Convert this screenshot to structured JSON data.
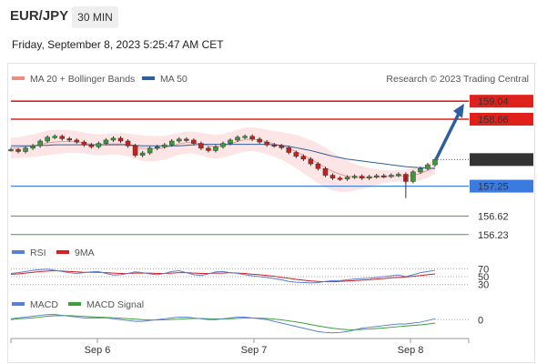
{
  "header": {
    "pair": "EUR/JPY",
    "timeframe": "30 MIN",
    "datetime": "Friday, September 8, 2023 5:25:47 AM CET"
  },
  "chart_data": {
    "type": "line",
    "price_legend": [
      {
        "label": "MA 20 + Bollinger Bands",
        "color": "#f28b82"
      },
      {
        "label": "MA 50",
        "color": "#2c5f9e"
      }
    ],
    "credit": "Research © 2023 Trading Central",
    "x_ticks": [
      "Sep 6",
      "Sep 7",
      "Sep 8"
    ],
    "price_ylim": [
      155.9,
      159.35
    ],
    "levels": [
      {
        "label": "159.04",
        "value": 159.04,
        "color": "#e0201b",
        "style": "resistance"
      },
      {
        "label": "158.66",
        "value": 158.66,
        "color": "#e0201b",
        "style": "resistance"
      },
      {
        "label": "157.81",
        "value": 157.81,
        "color": "#333333",
        "style": "current"
      },
      {
        "label": "157.25",
        "value": 157.25,
        "color": "#3b7be0",
        "style": "pivot"
      },
      {
        "label": "156.62",
        "value": 156.62,
        "color": "#3aa03a",
        "style": "support"
      },
      {
        "label": "156.23",
        "value": 156.23,
        "color": "#3aa03a",
        "style": "support"
      }
    ],
    "price_close": [
      158.02,
      157.98,
      158.05,
      158.1,
      158.2,
      158.28,
      158.3,
      158.25,
      158.22,
      158.18,
      158.12,
      158.08,
      158.15,
      158.22,
      158.26,
      158.2,
      158.1,
      157.9,
      157.95,
      158.05,
      158.08,
      158.12,
      158.2,
      158.24,
      158.22,
      158.15,
      158.05,
      158.0,
      158.08,
      158.15,
      158.22,
      158.28,
      158.3,
      158.24,
      158.18,
      158.12,
      158.1,
      158.06,
      157.96,
      157.88,
      157.82,
      157.72,
      157.62,
      157.48,
      157.42,
      157.4,
      157.44,
      157.46,
      157.42,
      157.45,
      157.47,
      157.46,
      157.48,
      157.5,
      157.35,
      157.55,
      157.62,
      157.7,
      157.81
    ],
    "ma20": [
      158.05,
      158.06,
      158.08,
      158.1,
      158.13,
      158.16,
      158.18,
      158.19,
      158.19,
      158.18,
      158.16,
      158.13,
      158.12,
      158.13,
      158.14,
      158.14,
      158.12,
      158.08,
      158.05,
      158.04,
      158.04,
      158.06,
      158.1,
      158.14,
      158.17,
      158.17,
      158.14,
      158.1,
      158.08,
      158.1,
      158.14,
      158.19,
      158.23,
      158.24,
      158.22,
      158.18,
      158.14,
      158.1,
      158.04,
      157.98,
      157.9,
      157.82,
      157.73,
      157.64,
      157.56,
      157.5,
      157.46,
      157.44,
      157.43,
      157.43,
      157.44,
      157.45,
      157.46,
      157.47,
      157.46,
      157.48,
      157.52,
      157.58,
      157.66
    ],
    "ma50": [
      158.1,
      158.1,
      158.1,
      158.1,
      158.11,
      158.11,
      158.12,
      158.12,
      158.12,
      158.12,
      158.12,
      158.12,
      158.12,
      158.12,
      158.12,
      158.12,
      158.12,
      158.11,
      158.1,
      158.1,
      158.1,
      158.1,
      158.1,
      158.1,
      158.11,
      158.12,
      158.13,
      158.13,
      158.13,
      158.13,
      158.13,
      158.13,
      158.13,
      158.13,
      158.13,
      158.13,
      158.12,
      158.11,
      158.09,
      158.06,
      158.03,
      158.0,
      157.96,
      157.92,
      157.88,
      157.85,
      157.82,
      157.8,
      157.78,
      157.76,
      157.74,
      157.72,
      157.7,
      157.68,
      157.66,
      157.65,
      157.64,
      157.63,
      157.62
    ],
    "bb_width": [
      0.22,
      0.22,
      0.23,
      0.24,
      0.25,
      0.26,
      0.26,
      0.25,
      0.24,
      0.23,
      0.22,
      0.22,
      0.22,
      0.22,
      0.22,
      0.23,
      0.24,
      0.26,
      0.27,
      0.27,
      0.26,
      0.25,
      0.24,
      0.23,
      0.23,
      0.23,
      0.24,
      0.25,
      0.25,
      0.25,
      0.25,
      0.25,
      0.25,
      0.25,
      0.25,
      0.26,
      0.27,
      0.29,
      0.32,
      0.35,
      0.38,
      0.4,
      0.42,
      0.42,
      0.4,
      0.37,
      0.33,
      0.28,
      0.24,
      0.2,
      0.16,
      0.14,
      0.12,
      0.12,
      0.14,
      0.15,
      0.15,
      0.15,
      0.16
    ],
    "rsi_legend": [
      {
        "label": "RSI",
        "color": "#5a7fd6"
      },
      {
        "label": "9MA",
        "color": "#d62020"
      }
    ],
    "rsi_levels": [
      {
        "label": "70",
        "value": 70
      },
      {
        "label": "50",
        "value": 50
      },
      {
        "label": "30",
        "value": 30
      }
    ],
    "rsi_ylim": [
      20,
      80
    ],
    "rsi": [
      58,
      60,
      63,
      66,
      68,
      69,
      66,
      63,
      60,
      58,
      60,
      62,
      63,
      58,
      54,
      55,
      58,
      62,
      60,
      57,
      55,
      58,
      63,
      65,
      60,
      55,
      53,
      57,
      62,
      63,
      60,
      58,
      55,
      52,
      50,
      48,
      45,
      42,
      38,
      36,
      35,
      34,
      35,
      38,
      40,
      40,
      42,
      44,
      45,
      46,
      48,
      50,
      52,
      54,
      50,
      55,
      60,
      63,
      66
    ],
    "rsi_ma": [
      56,
      57,
      59,
      61,
      63,
      64,
      65,
      64,
      63,
      62,
      61,
      61,
      61,
      60,
      59,
      58,
      58,
      59,
      59,
      59,
      58,
      58,
      59,
      60,
      60,
      59,
      58,
      58,
      59,
      59,
      60,
      59,
      58,
      56,
      55,
      53,
      51,
      48,
      46,
      43,
      41,
      39,
      38,
      37,
      37,
      38,
      39,
      40,
      41,
      42,
      44,
      45,
      47,
      48,
      49,
      51,
      53,
      55,
      57
    ],
    "macd_legend": [
      {
        "label": "MACD",
        "color": "#5a7fd6"
      },
      {
        "label": "MACD Signal",
        "color": "#3aa03a"
      }
    ],
    "macd_levels": [
      {
        "label": "0",
        "value": 0
      }
    ],
    "macd_ylim": [
      -0.2,
      0.12
    ],
    "macd": [
      0.01,
      0.02,
      0.03,
      0.04,
      0.05,
      0.06,
      0.06,
      0.05,
      0.04,
      0.03,
      0.02,
      0.02,
      0.02,
      0.02,
      0.01,
      0.0,
      -0.01,
      -0.02,
      -0.02,
      -0.01,
      0.0,
      0.01,
      0.02,
      0.03,
      0.03,
      0.02,
      0.01,
      0.0,
      0.0,
      0.01,
      0.02,
      0.03,
      0.03,
      0.02,
      0.01,
      0.0,
      -0.02,
      -0.04,
      -0.06,
      -0.08,
      -0.1,
      -0.12,
      -0.14,
      -0.15,
      -0.155,
      -0.15,
      -0.14,
      -0.12,
      -0.1,
      -0.09,
      -0.08,
      -0.07,
      -0.06,
      -0.05,
      -0.05,
      -0.04,
      -0.03,
      -0.01,
      0.01
    ],
    "macd_signal": [
      0.0,
      0.01,
      0.015,
      0.02,
      0.03,
      0.04,
      0.045,
      0.048,
      0.047,
      0.043,
      0.038,
      0.033,
      0.029,
      0.026,
      0.022,
      0.017,
      0.011,
      0.005,
      0.0,
      -0.003,
      -0.004,
      -0.002,
      0.001,
      0.006,
      0.011,
      0.014,
      0.014,
      0.011,
      0.008,
      0.008,
      0.01,
      0.014,
      0.018,
      0.019,
      0.017,
      0.013,
      0.006,
      -0.003,
      -0.014,
      -0.027,
      -0.041,
      -0.057,
      -0.073,
      -0.088,
      -0.101,
      -0.111,
      -0.117,
      -0.118,
      -0.115,
      -0.11,
      -0.104,
      -0.097,
      -0.09,
      -0.082,
      -0.075,
      -0.068,
      -0.061,
      -0.052,
      -0.04
    ]
  }
}
